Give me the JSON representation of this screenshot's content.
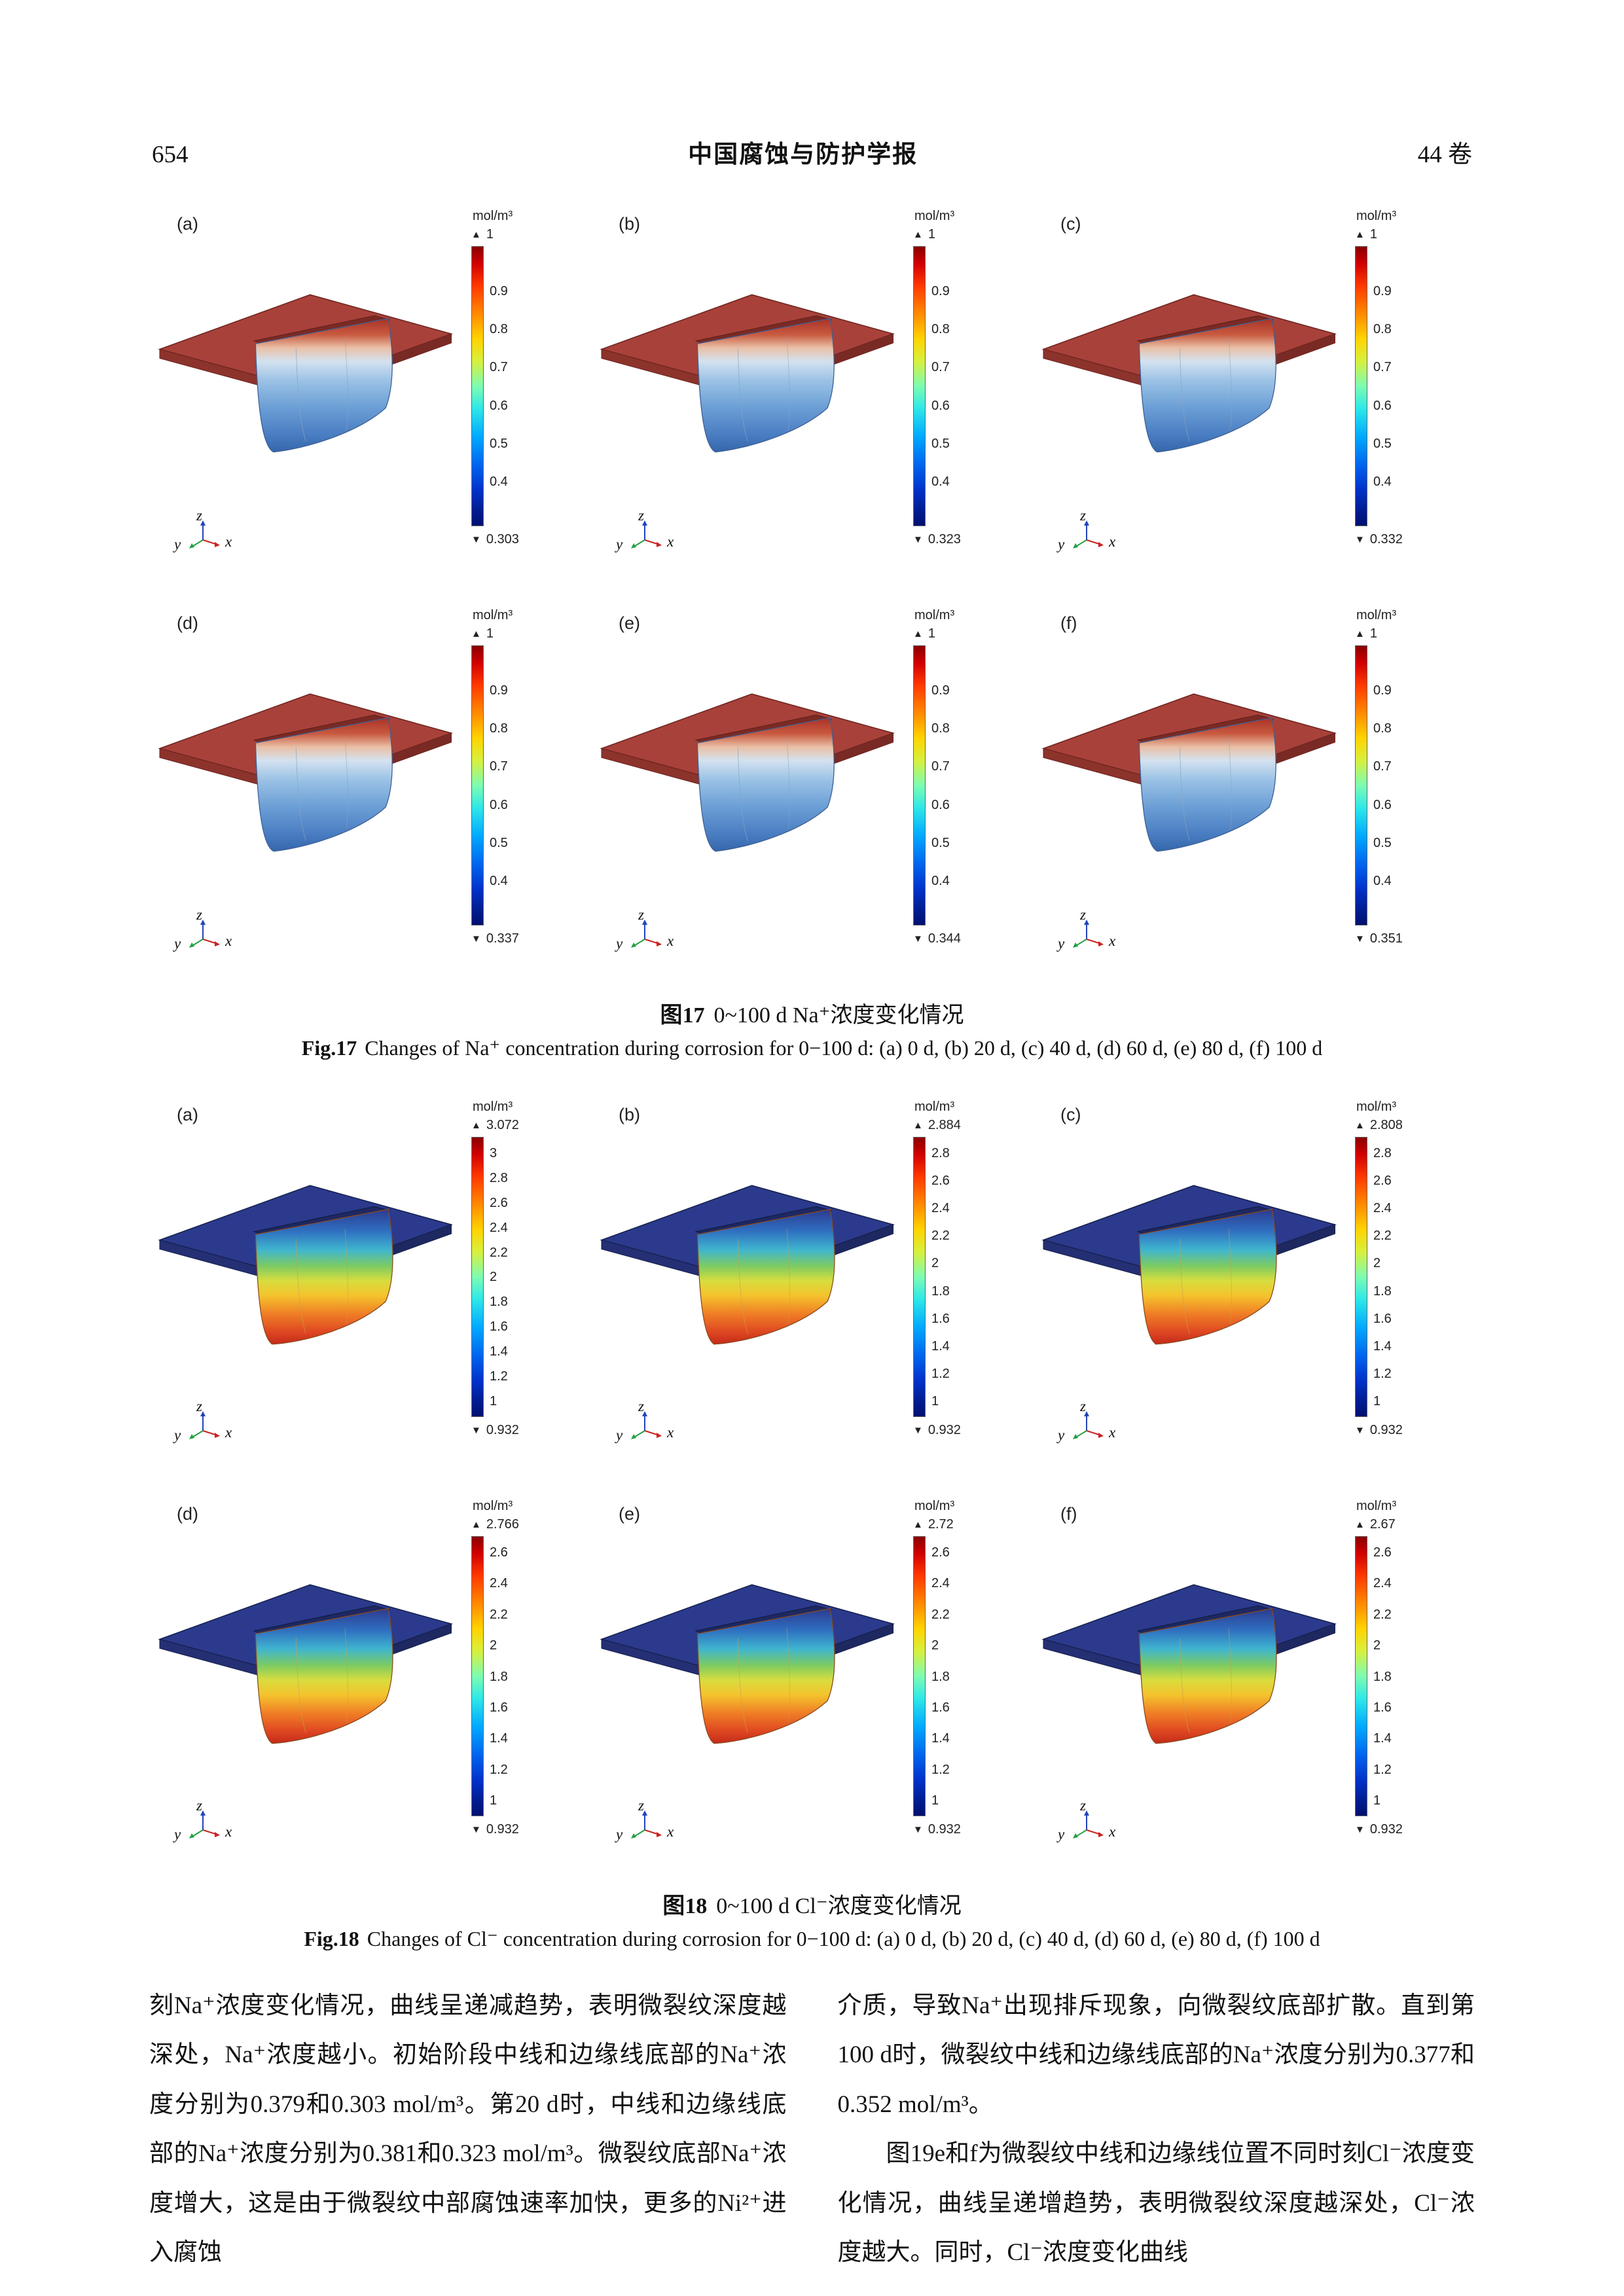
{
  "page": {
    "number": "654",
    "journal_title": "中国腐蚀与防护学报",
    "volume": "44 卷"
  },
  "icons": {
    "max_arrow": "▲",
    "min_arrow": "▼"
  },
  "axes": {
    "x": "x",
    "y": "y",
    "z": "z"
  },
  "fig17": {
    "unit": "mol/m³",
    "caption_cn_label": "图17",
    "caption_cn_text": "0~100 d Na⁺浓度变化情况",
    "caption_en_label": "Fig.17",
    "caption_en_text": "Changes of Na⁺ concentration during corrosion for 0−100 d: (a) 0 d, (b) 20 d, (c) 40 d, (d) 60 d, (e) 80 d, (f) 100 d",
    "subplots": [
      {
        "label": "(a)",
        "max": "1",
        "min": "0.303",
        "ticks": [
          "0.9",
          "0.8",
          "0.7",
          "0.6",
          "0.5",
          "0.4"
        ]
      },
      {
        "label": "(b)",
        "max": "1",
        "min": "0.323",
        "ticks": [
          "0.9",
          "0.8",
          "0.7",
          "0.6",
          "0.5",
          "0.4"
        ]
      },
      {
        "label": "(c)",
        "max": "1",
        "min": "0.332",
        "ticks": [
          "0.9",
          "0.8",
          "0.7",
          "0.6",
          "0.5",
          "0.4"
        ]
      },
      {
        "label": "(d)",
        "max": "1",
        "min": "0.337",
        "ticks": [
          "0.9",
          "0.8",
          "0.7",
          "0.6",
          "0.5",
          "0.4"
        ]
      },
      {
        "label": "(e)",
        "max": "1",
        "min": "0.344",
        "ticks": [
          "0.9",
          "0.8",
          "0.7",
          "0.6",
          "0.5",
          "0.4"
        ]
      },
      {
        "label": "(f)",
        "max": "1",
        "min": "0.351",
        "ticks": [
          "0.9",
          "0.8",
          "0.7",
          "0.6",
          "0.5",
          "0.4"
        ]
      }
    ]
  },
  "fig18": {
    "unit": "mol/m³",
    "caption_cn_label": "图18",
    "caption_cn_text": "0~100 d Cl⁻浓度变化情况",
    "caption_en_label": "Fig.18",
    "caption_en_text": "Changes of Cl⁻ concentration during corrosion for 0−100 d: (a) 0 d, (b) 20 d, (c) 40 d, (d) 60 d, (e) 80 d, (f) 100 d",
    "subplots": [
      {
        "label": "(a)",
        "max": "3.072",
        "min": "0.932",
        "ticks": [
          "3",
          "2.8",
          "2.6",
          "2.4",
          "2.2",
          "2",
          "1.8",
          "1.6",
          "1.4",
          "1.2",
          "1"
        ]
      },
      {
        "label": "(b)",
        "max": "2.884",
        "min": "0.932",
        "ticks": [
          "2.8",
          "2.6",
          "2.4",
          "2.2",
          "2",
          "1.8",
          "1.6",
          "1.4",
          "1.2",
          "1"
        ]
      },
      {
        "label": "(c)",
        "max": "2.808",
        "min": "0.932",
        "ticks": [
          "2.8",
          "2.6",
          "2.4",
          "2.2",
          "2",
          "1.8",
          "1.6",
          "1.4",
          "1.2",
          "1"
        ]
      },
      {
        "label": "(d)",
        "max": "2.766",
        "min": "0.932",
        "ticks": [
          "2.6",
          "2.4",
          "2.2",
          "2",
          "1.8",
          "1.6",
          "1.4",
          "1.2",
          "1"
        ]
      },
      {
        "label": "(e)",
        "max": "2.72",
        "min": "0.932",
        "ticks": [
          "2.6",
          "2.4",
          "2.2",
          "2",
          "1.8",
          "1.6",
          "1.4",
          "1.2",
          "1"
        ]
      },
      {
        "label": "(f)",
        "max": "2.67",
        "min": "0.932",
        "ticks": [
          "2.6",
          "2.4",
          "2.2",
          "2",
          "1.8",
          "1.6",
          "1.4",
          "1.2",
          "1"
        ]
      }
    ]
  },
  "body": {
    "left_p1": "刻Na⁺浓度变化情况，曲线呈递减趋势，表明微裂纹深度越深处，Na⁺浓度越小。初始阶段中线和边缘线底部的Na⁺浓度分别为0.379和0.303 mol/m³。第20 d时，中线和边缘线底部的Na⁺浓度分别为0.381和0.323 mol/m³。微裂纹底部Na⁺浓度增大，这是由于微裂纹中部腐蚀速率加快，更多的Ni²⁺进入腐蚀",
    "right_p1": "介质，导致Na⁺出现排斥现象，向微裂纹底部扩散。直到第100 d时，微裂纹中线和边缘线底部的Na⁺浓度分别为0.377和0.352 mol/m³。",
    "right_p2": "图19e和f为微裂纹中线和边缘线位置不同时刻Cl⁻浓度变化情况，曲线呈递增趋势，表明微裂纹深度越深处，Cl⁻浓度越大。同时，Cl⁻浓度变化曲线"
  }
}
